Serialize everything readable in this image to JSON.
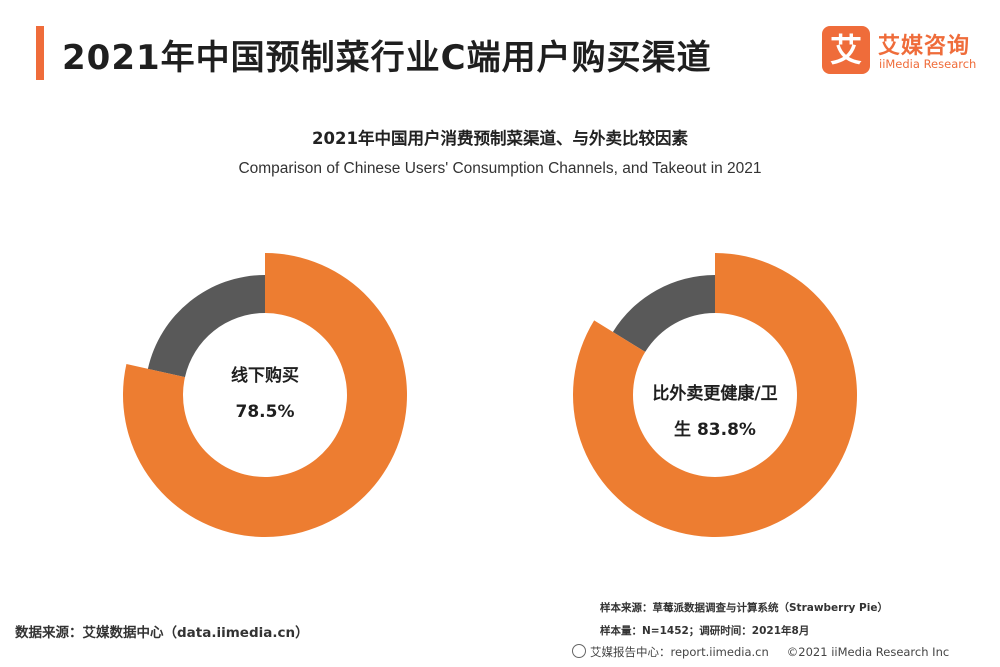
{
  "page": {
    "title": "2021年中国预制菜行业C端用户购买渠道"
  },
  "logo": {
    "mark": "艾",
    "name_cn": "艾媒咨询",
    "name_en": "iiMedia Research"
  },
  "chart_data": {
    "type": "pie",
    "title": "2021年中国用户消费预制菜渠道、与外卖比较因素",
    "subtitle": "Comparison of Chinese Users' Consumption Channels, and Takeout in 2021",
    "charts": [
      {
        "label_line1": "线下购买",
        "label_line2": "78.5%",
        "value": 78.5,
        "colors": {
          "primary": "#ed7d31",
          "remainder": "#595959"
        }
      },
      {
        "label_line1": "比外卖更健康/卫",
        "label_line2": "生 83.8%",
        "value": 83.8,
        "colors": {
          "primary": "#ed7d31",
          "remainder": "#595959"
        }
      }
    ]
  },
  "footer": {
    "data_source": "数据来源：艾媒数据中心（data.iimedia.cn）",
    "sample_source": "样本来源：草莓派数据调查与计算系统（Strawberry Pie）",
    "sample_meta": "样本量：N=1452；调研时间：2021年8月",
    "report_center": "艾媒报告中心：report.iimedia.cn",
    "copyright": "©2021  iiMedia Research  Inc"
  }
}
